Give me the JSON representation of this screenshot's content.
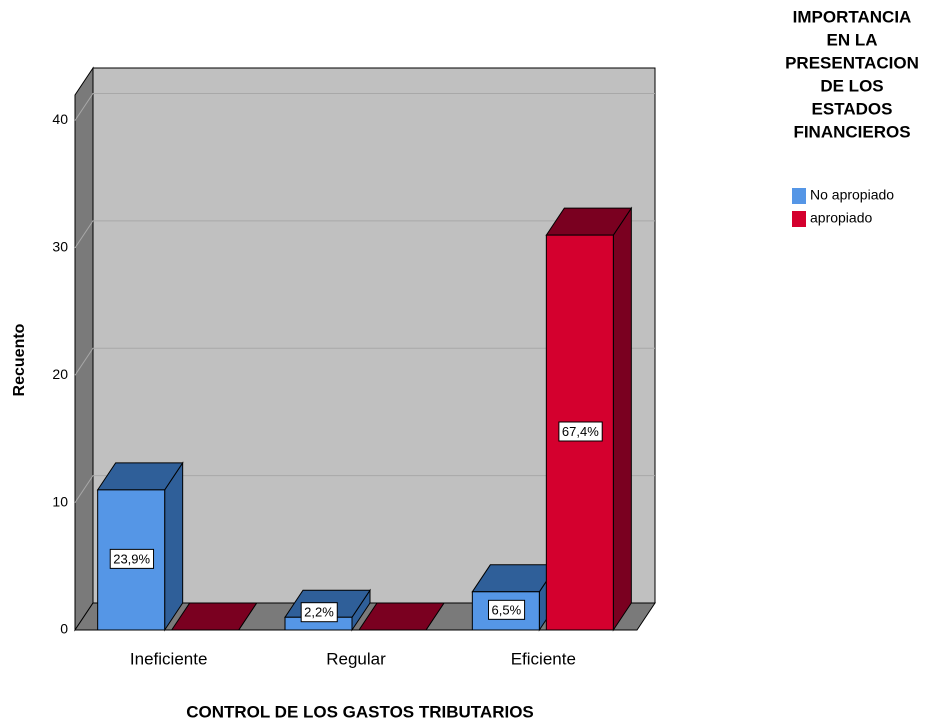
{
  "chart_data": {
    "type": "bar3d",
    "x_label": "CONTROL DE LOS GASTOS TRIBUTARIOS",
    "y_label": "Recuento",
    "legend_title": [
      "IMPORTANCIA",
      "EN LA",
      "PRESENTACION",
      "DE LOS",
      "ESTADOS",
      "FINANCIEROS"
    ],
    "categories": [
      "Ineficiente",
      "Regular",
      "Eficiente"
    ],
    "series": [
      {
        "name": "No apropiado",
        "color": "#5596e6",
        "side_color": "#2f5f99",
        "values": [
          11,
          1,
          3
        ],
        "percent_labels": [
          "23,9%",
          "2,2%",
          "6,5%"
        ]
      },
      {
        "name": "apropiado",
        "color": "#d4002e",
        "side_color": "#7a0020",
        "values": [
          0,
          0,
          31
        ],
        "percent_labels": [
          null,
          null,
          "67,4%"
        ]
      }
    ],
    "ylim": [
      0,
      42
    ],
    "yticks": [
      0,
      10,
      20,
      30,
      40
    ],
    "grid": true,
    "legend": "top-right"
  }
}
